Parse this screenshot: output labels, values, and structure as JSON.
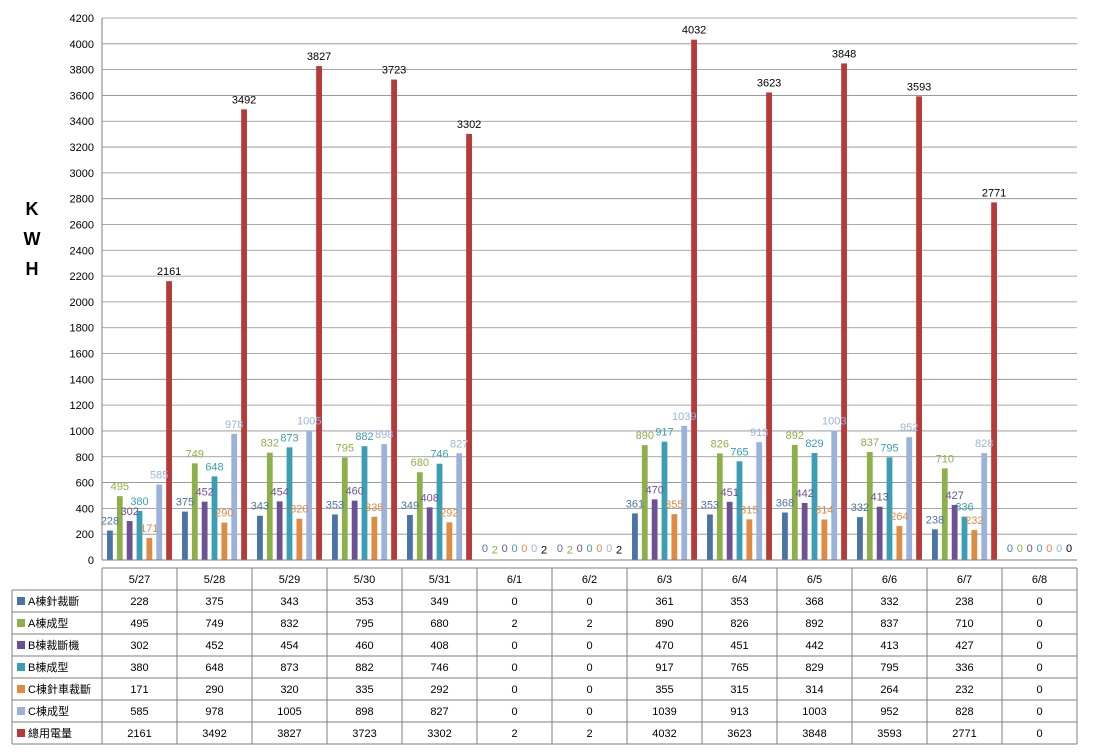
{
  "chart_data": {
    "type": "bar",
    "title": "",
    "ylabel": [
      "K",
      "W",
      "H"
    ],
    "ylim": [
      0,
      4200
    ],
    "ytick_step": 200,
    "grid": true,
    "legend": "data table below chart",
    "categories": [
      "5/27",
      "5/28",
      "5/29",
      "5/30",
      "5/31",
      "6/1",
      "6/2",
      "6/3",
      "6/4",
      "6/5",
      "6/6",
      "6/7",
      "6/8"
    ],
    "series": [
      {
        "name": "A棟針裁斷",
        "color": "#4a74a8",
        "values": [
          228,
          375,
          343,
          353,
          349,
          0,
          0,
          361,
          353,
          368,
          332,
          238,
          0
        ]
      },
      {
        "name": "A棟成型",
        "color": "#8db04b",
        "values": [
          495,
          749,
          832,
          795,
          680,
          2,
          2,
          890,
          826,
          892,
          837,
          710,
          0
        ]
      },
      {
        "name": "B棟裁斷機",
        "color": "#6e5193",
        "values": [
          302,
          452,
          454,
          460,
          408,
          0,
          0,
          470,
          451,
          442,
          413,
          427,
          0
        ]
      },
      {
        "name": "B棟成型",
        "color": "#3a9fb5",
        "values": [
          380,
          648,
          873,
          882,
          746,
          0,
          0,
          917,
          765,
          829,
          795,
          336,
          0
        ]
      },
      {
        "name": "C棟針車裁斷",
        "color": "#e08b42",
        "values": [
          171,
          290,
          320,
          335,
          292,
          0,
          0,
          355,
          315,
          314,
          264,
          232,
          0
        ]
      },
      {
        "name": "C棟成型",
        "color": "#9bb3dc",
        "values": [
          585,
          978,
          1005,
          898,
          827,
          0,
          0,
          1039,
          913,
          1003,
          952,
          828,
          0
        ]
      },
      {
        "name": "總用電量",
        "color": "#b53a38",
        "values": [
          2161,
          3492,
          3827,
          3723,
          3302,
          2,
          2,
          4032,
          3623,
          3848,
          3593,
          2771,
          0
        ]
      }
    ]
  }
}
